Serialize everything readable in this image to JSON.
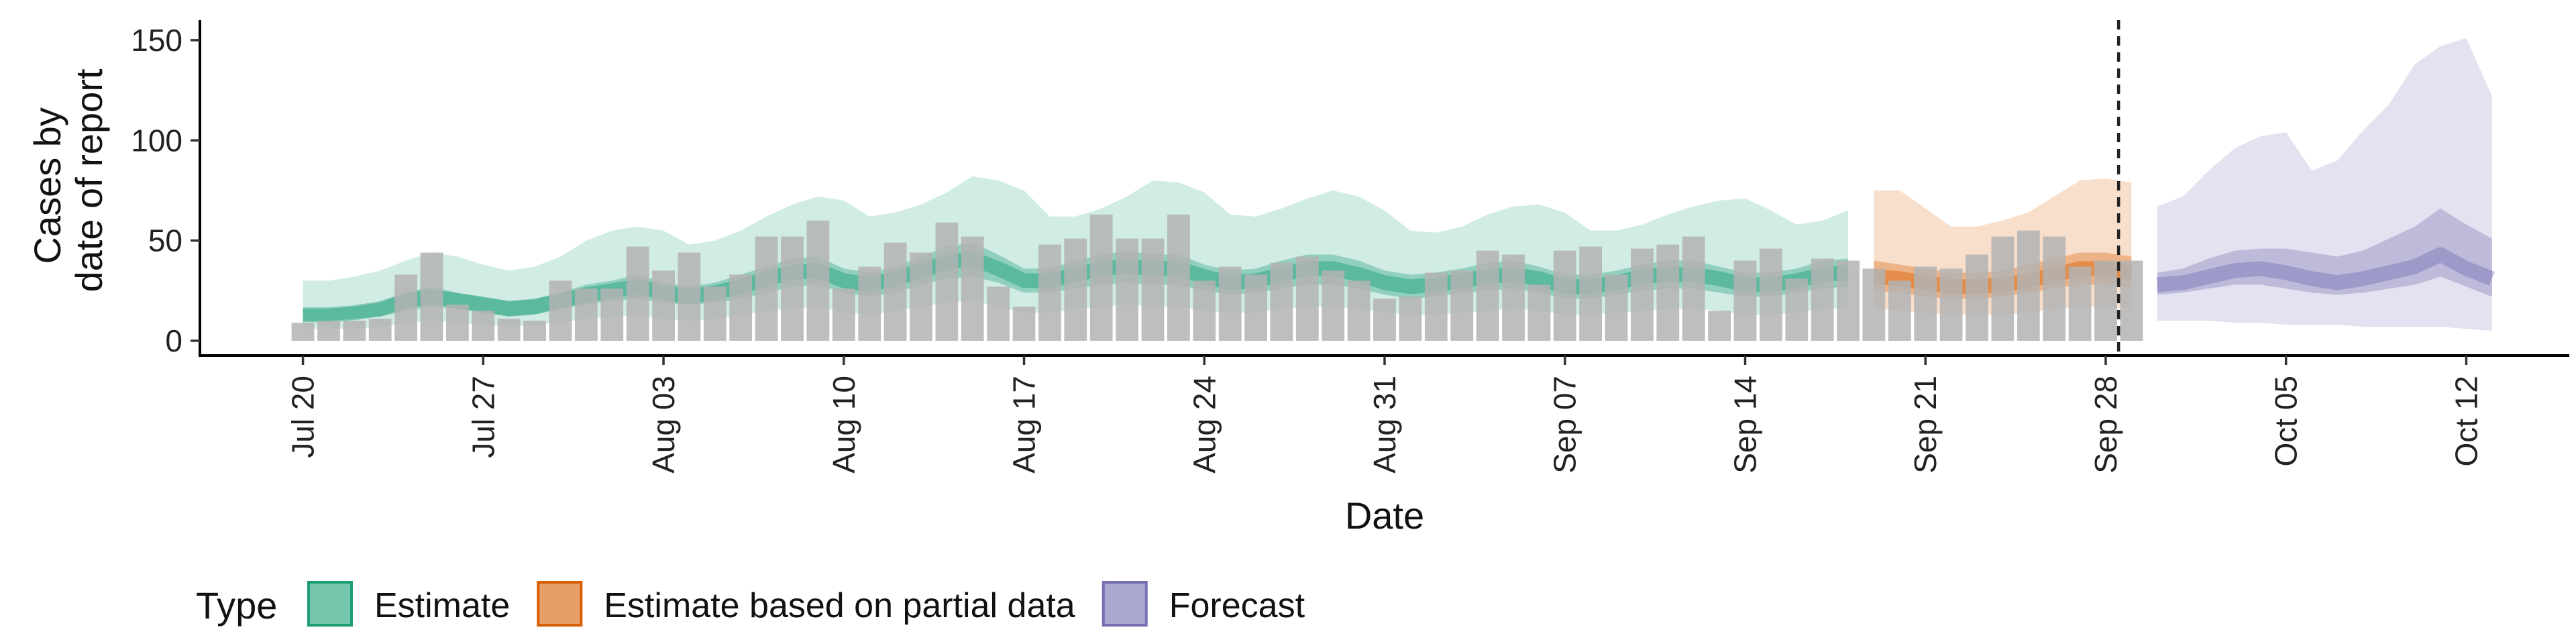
{
  "chart_data": {
    "type": "bar",
    "title": "",
    "xlabel": "Date",
    "ylabel_lines": [
      "Cases by",
      "date of report"
    ],
    "ylim": [
      0,
      160
    ],
    "yticks": [
      0,
      50,
      100,
      150
    ],
    "xlim": [
      "2020-07-16",
      "2020-10-16"
    ],
    "xtick_labels": [
      "Jul 20",
      "Jul 27",
      "Aug 03",
      "Aug 10",
      "Aug 17",
      "Aug 24",
      "Aug 31",
      "Sep 07",
      "Sep 14",
      "Sep 21",
      "Sep 28",
      "Oct 05",
      "Oct 12"
    ],
    "xtick_dates": [
      "2020-07-20",
      "2020-07-27",
      "2020-08-03",
      "2020-08-10",
      "2020-08-17",
      "2020-08-24",
      "2020-08-31",
      "2020-09-07",
      "2020-09-14",
      "2020-09-21",
      "2020-09-28",
      "2020-10-05",
      "2020-10-12"
    ],
    "forecast_line_date": "2020-09-29",
    "bar_color": "#b3b3b3",
    "observed_cases": {
      "dates": [
        "2020-07-20",
        "2020-07-21",
        "2020-07-22",
        "2020-07-23",
        "2020-07-24",
        "2020-07-25",
        "2020-07-26",
        "2020-07-27",
        "2020-07-28",
        "2020-07-29",
        "2020-07-30",
        "2020-07-31",
        "2020-08-01",
        "2020-08-02",
        "2020-08-03",
        "2020-08-04",
        "2020-08-05",
        "2020-08-06",
        "2020-08-07",
        "2020-08-08",
        "2020-08-09",
        "2020-08-10",
        "2020-08-11",
        "2020-08-12",
        "2020-08-13",
        "2020-08-14",
        "2020-08-15",
        "2020-08-16",
        "2020-08-17",
        "2020-08-18",
        "2020-08-19",
        "2020-08-20",
        "2020-08-21",
        "2020-08-22",
        "2020-08-23",
        "2020-08-24",
        "2020-08-25",
        "2020-08-26",
        "2020-08-27",
        "2020-08-28",
        "2020-08-29",
        "2020-08-30",
        "2020-08-31",
        "2020-09-01",
        "2020-09-02",
        "2020-09-03",
        "2020-09-04",
        "2020-09-05",
        "2020-09-06",
        "2020-09-07",
        "2020-09-08",
        "2020-09-09",
        "2020-09-10",
        "2020-09-11",
        "2020-09-12",
        "2020-09-13",
        "2020-09-14",
        "2020-09-15",
        "2020-09-16",
        "2020-09-17",
        "2020-09-18",
        "2020-09-19",
        "2020-09-20",
        "2020-09-21",
        "2020-09-22",
        "2020-09-23",
        "2020-09-24",
        "2020-09-25",
        "2020-09-26",
        "2020-09-27",
        "2020-09-28",
        "2020-09-29"
      ],
      "values": [
        9,
        10,
        10,
        11,
        33,
        44,
        18,
        15,
        11,
        10,
        30,
        26,
        26,
        47,
        35,
        44,
        27,
        33,
        52,
        52,
        60,
        26,
        37,
        49,
        44,
        59,
        52,
        27,
        17,
        48,
        51,
        63,
        51,
        51,
        63,
        30,
        37,
        33,
        39,
        42,
        35,
        30,
        21,
        22,
        34,
        35,
        45,
        43,
        28,
        45,
        47,
        33,
        46,
        48,
        52,
        15,
        40,
        46,
        31,
        41,
        40,
        36,
        30,
        37,
        36,
        43,
        52,
        55,
        52,
        37,
        40,
        40
      ]
    },
    "series": [
      {
        "name": "Estimate",
        "color": "#1b9e77",
        "dates": [
          "2020-07-20",
          "2020-07-21",
          "2020-07-22",
          "2020-07-23",
          "2020-07-24",
          "2020-07-25",
          "2020-07-26",
          "2020-07-27",
          "2020-07-28",
          "2020-07-29",
          "2020-07-30",
          "2020-07-31",
          "2020-08-01",
          "2020-08-02",
          "2020-08-03",
          "2020-08-04",
          "2020-08-05",
          "2020-08-06",
          "2020-08-07",
          "2020-08-08",
          "2020-08-09",
          "2020-08-10",
          "2020-08-11",
          "2020-08-12",
          "2020-08-13",
          "2020-08-14",
          "2020-08-15",
          "2020-08-16",
          "2020-08-17",
          "2020-08-18",
          "2020-08-19",
          "2020-08-20",
          "2020-08-21",
          "2020-08-22",
          "2020-08-23",
          "2020-08-24",
          "2020-08-25",
          "2020-08-26",
          "2020-08-27",
          "2020-08-28",
          "2020-08-29",
          "2020-08-30",
          "2020-08-31",
          "2020-09-01",
          "2020-09-02",
          "2020-09-03",
          "2020-09-04",
          "2020-09-05",
          "2020-09-06",
          "2020-09-07",
          "2020-09-08",
          "2020-09-09",
          "2020-09-10",
          "2020-09-11",
          "2020-09-12",
          "2020-09-13",
          "2020-09-14",
          "2020-09-15",
          "2020-09-16",
          "2020-09-17",
          "2020-09-18"
        ],
        "median": [
          13,
          13,
          14,
          16,
          20,
          22,
          20,
          18,
          16,
          17,
          20,
          23,
          25,
          27,
          24,
          22,
          24,
          27,
          31,
          34,
          35,
          30,
          28,
          31,
          35,
          39,
          41,
          36,
          30,
          30,
          33,
          36,
          37,
          36,
          36,
          32,
          29,
          30,
          33,
          36,
          36,
          33,
          29,
          27,
          28,
          30,
          32,
          33,
          31,
          27,
          27,
          29,
          32,
          33,
          33,
          31,
          28,
          28,
          30,
          33,
          34
        ],
        "ci50_lower": [
          10,
          10,
          11,
          12,
          15,
          17,
          16,
          14,
          12,
          13,
          16,
          18,
          20,
          21,
          19,
          18,
          19,
          21,
          24,
          27,
          28,
          24,
          22,
          24,
          28,
          31,
          32,
          29,
          24,
          24,
          26,
          28,
          29,
          28,
          28,
          25,
          23,
          24,
          26,
          28,
          28,
          26,
          23,
          21,
          22,
          24,
          25,
          26,
          24,
          21,
          21,
          23,
          25,
          26,
          26,
          24,
          22,
          22,
          24,
          26,
          27
        ],
        "ci50_upper": [
          16,
          16,
          17,
          19,
          24,
          27,
          24,
          22,
          20,
          21,
          24,
          28,
          30,
          33,
          29,
          27,
          29,
          33,
          37,
          41,
          42,
          36,
          34,
          37,
          42,
          47,
          49,
          43,
          36,
          36,
          40,
          43,
          45,
          43,
          43,
          38,
          35,
          36,
          40,
          43,
          43,
          40,
          35,
          33,
          34,
          36,
          39,
          40,
          37,
          33,
          33,
          35,
          38,
          40,
          40,
          37,
          34,
          34,
          36,
          40,
          41
        ],
        "ci90_lower": [
          6,
          6,
          6,
          7,
          9,
          10,
          9,
          8,
          7,
          8,
          9,
          11,
          12,
          13,
          11,
          10,
          11,
          13,
          15,
          16,
          17,
          14,
          13,
          15,
          17,
          19,
          20,
          17,
          14,
          14,
          16,
          17,
          18,
          17,
          17,
          15,
          14,
          14,
          16,
          17,
          17,
          16,
          14,
          13,
          13,
          14,
          15,
          16,
          15,
          13,
          13,
          14,
          15,
          16,
          16,
          15,
          13,
          13,
          14,
          16,
          16
        ],
        "ci90_upper": [
          30,
          30,
          32,
          35,
          40,
          44,
          42,
          38,
          35,
          37,
          42,
          50,
          55,
          57,
          55,
          48,
          50,
          55,
          62,
          68,
          72,
          70,
          62,
          64,
          68,
          74,
          82,
          80,
          75,
          62,
          62,
          66,
          72,
          80,
          79,
          74,
          63,
          62,
          66,
          71,
          75,
          72,
          65,
          55,
          54,
          57,
          63,
          67,
          68,
          64,
          55,
          55,
          58,
          63,
          67,
          70,
          71,
          65,
          58,
          60,
          65
        ]
      },
      {
        "name": "Estimate based on partial data",
        "color": "#d95f02",
        "dates": [
          "2020-09-19",
          "2020-09-20",
          "2020-09-21",
          "2020-09-22",
          "2020-09-23",
          "2020-09-24",
          "2020-09-25",
          "2020-09-26",
          "2020-09-27",
          "2020-09-28",
          "2020-09-29"
        ],
        "median": [
          32,
          31,
          29,
          27,
          27,
          28,
          30,
          33,
          36,
          36,
          34
        ],
        "ci50_lower": [
          25,
          24,
          22,
          21,
          21,
          22,
          24,
          26,
          28,
          28,
          27
        ],
        "ci50_upper": [
          40,
          38,
          36,
          34,
          34,
          35,
          38,
          41,
          44,
          44,
          42
        ],
        "ci90_lower": [
          16,
          15,
          14,
          13,
          13,
          13,
          14,
          16,
          17,
          17,
          16
        ],
        "ci90_upper": [
          75,
          75,
          66,
          57,
          57,
          60,
          64,
          72,
          80,
          81,
          79
        ]
      },
      {
        "name": "Forecast",
        "color": "#7570b3",
        "dates": [
          "2020-09-30",
          "2020-10-01",
          "2020-10-02",
          "2020-10-03",
          "2020-10-04",
          "2020-10-05",
          "2020-10-06",
          "2020-10-07",
          "2020-10-08",
          "2020-10-09",
          "2020-10-10",
          "2020-10-11",
          "2020-10-12",
          "2020-10-13"
        ],
        "median": [
          28,
          29,
          32,
          35,
          36,
          34,
          31,
          29,
          31,
          34,
          37,
          43,
          36,
          31
        ],
        "ci50_lower": [
          23,
          24,
          26,
          28,
          28,
          26,
          24,
          23,
          24,
          26,
          28,
          32,
          27,
          22
        ],
        "ci50_upper": [
          34,
          36,
          41,
          45,
          46,
          46,
          44,
          42,
          45,
          51,
          57,
          66,
          58,
          51
        ],
        "ci90_lower": [
          10,
          10,
          10,
          9,
          9,
          8,
          8,
          8,
          7,
          7,
          7,
          7,
          6,
          5
        ],
        "ci90_upper": [
          67,
          72,
          85,
          96,
          102,
          104,
          85,
          90,
          105,
          118,
          138,
          147,
          151,
          122
        ]
      }
    ],
    "legend": {
      "position": "bottom",
      "title": "Type",
      "entries": [
        "Estimate",
        "Estimate based on partial data",
        "Forecast"
      ]
    },
    "grid": false
  }
}
